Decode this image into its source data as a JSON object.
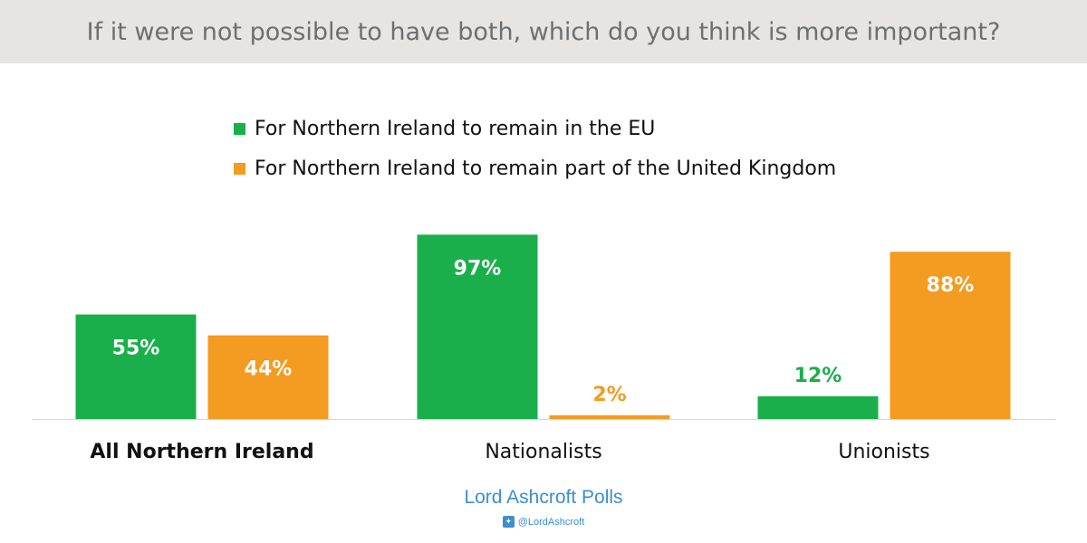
{
  "title": "If it were not possible to have both, which do you think is more important?",
  "legend": [
    {
      "label": "For Northern Ireland to remain in the EU",
      "color": "#1aaf4b"
    },
    {
      "label": "For Northern Ireland to remain part of the United Kingdom",
      "color": "#f49b22"
    }
  ],
  "chart_data": {
    "type": "bar",
    "categories": [
      "All Northern Ireland",
      "Nationalists",
      "Unionists"
    ],
    "category_bold": [
      true,
      false,
      false
    ],
    "series": [
      {
        "name": "For Northern Ireland to remain in the EU",
        "values": [
          55,
          97,
          12
        ],
        "color": "#1aaf4b"
      },
      {
        "name": "For Northern Ireland to remain part of the United Kingdom",
        "values": [
          44,
          2,
          88
        ],
        "color": "#f49b22"
      }
    ],
    "value_suffix": "%",
    "ylim": [
      0,
      100
    ],
    "grid": false,
    "legend_position": "top"
  },
  "footer": {
    "brand": "Lord Ashcroft Polls",
    "twitter_handle": "@LordAshcroft",
    "twitter_icon": "twitter-bird-icon"
  }
}
